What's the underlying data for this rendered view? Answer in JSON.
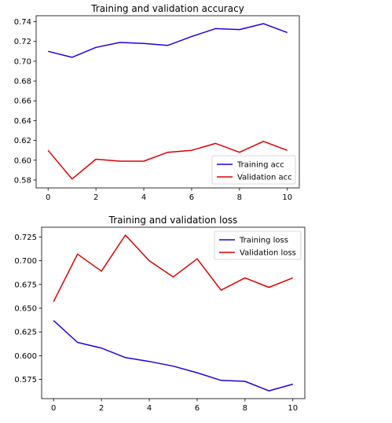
{
  "chart_data": [
    {
      "type": "line",
      "title": "Training and validation accuracy",
      "xlabel": "",
      "ylabel": "",
      "x": [
        0,
        1,
        2,
        3,
        4,
        5,
        6,
        7,
        8,
        9,
        10
      ],
      "xlim": [
        -0.5,
        10.5
      ],
      "ylim": [
        0.572,
        0.746
      ],
      "xticks": [
        0,
        2,
        4,
        6,
        8,
        10
      ],
      "yticks": [
        0.58,
        0.6,
        0.62,
        0.64,
        0.66,
        0.68,
        0.7,
        0.72,
        0.74
      ],
      "tick_decimals": 2,
      "grid": false,
      "legend_position": "lower-right",
      "series": [
        {
          "name": "Training acc",
          "color": "#2200dd",
          "values": [
            0.71,
            0.704,
            0.714,
            0.719,
            0.718,
            0.716,
            0.725,
            0.733,
            0.732,
            0.738,
            0.729
          ]
        },
        {
          "name": "Validation acc",
          "color": "#dd0000",
          "values": [
            0.61,
            0.581,
            0.601,
            0.599,
            0.599,
            0.608,
            0.61,
            0.617,
            0.608,
            0.619,
            0.61
          ]
        }
      ]
    },
    {
      "type": "line",
      "title": "Training and validation loss",
      "xlabel": "",
      "ylabel": "",
      "x": [
        0,
        1,
        2,
        3,
        4,
        5,
        6,
        7,
        8,
        9,
        10
      ],
      "xlim": [
        -0.5,
        10.5
      ],
      "ylim": [
        0.5548,
        0.7353
      ],
      "xticks": [
        0,
        2,
        4,
        6,
        8,
        10
      ],
      "yticks": [
        0.575,
        0.6,
        0.625,
        0.65,
        0.675,
        0.7,
        0.725
      ],
      "tick_decimals": 3,
      "grid": false,
      "legend_position": "upper-right",
      "series": [
        {
          "name": "Training loss",
          "color": "#2200dd",
          "values": [
            0.637,
            0.614,
            0.608,
            0.598,
            0.594,
            0.589,
            0.582,
            0.574,
            0.573,
            0.563,
            0.57
          ]
        },
        {
          "name": "Validation loss",
          "color": "#dd0000",
          "values": [
            0.657,
            0.707,
            0.689,
            0.727,
            0.7,
            0.683,
            0.702,
            0.669,
            0.682,
            0.672,
            0.682
          ]
        }
      ]
    }
  ]
}
